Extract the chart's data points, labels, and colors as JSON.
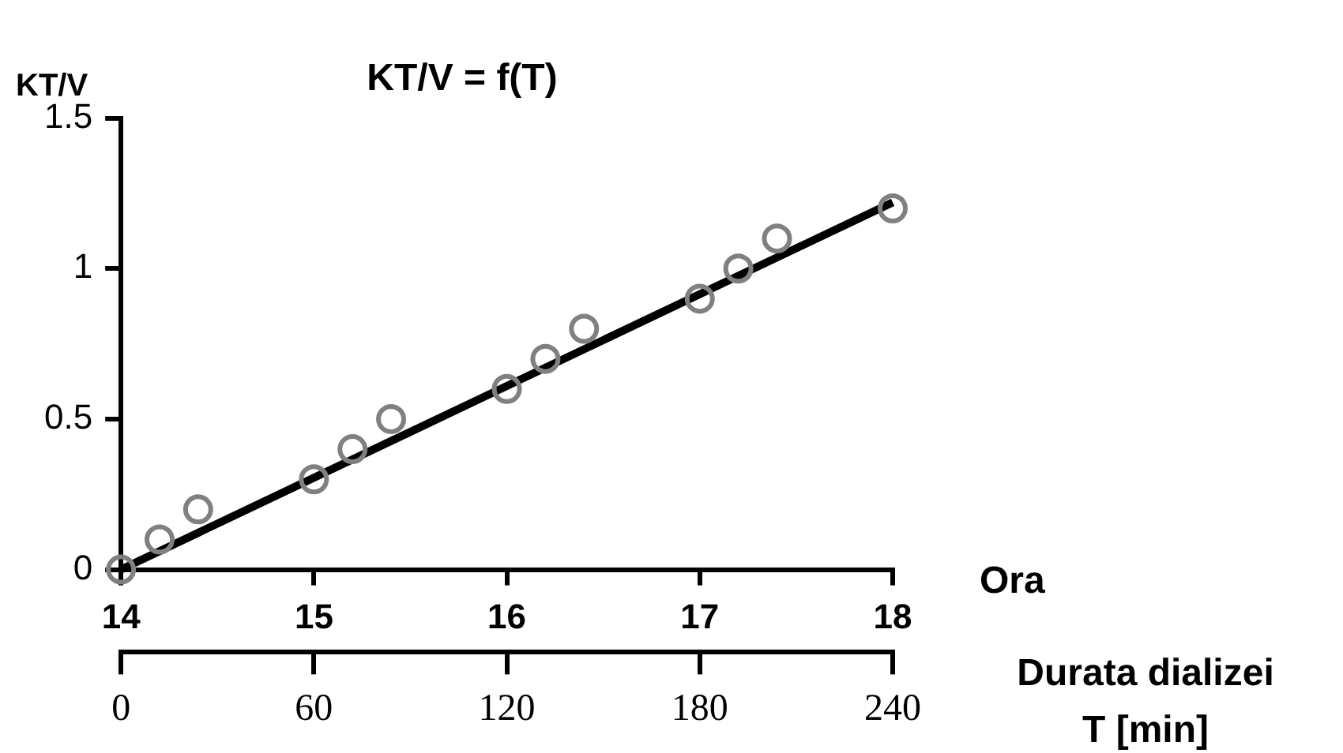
{
  "chart_data": {
    "type": "scatter",
    "title": "KT/V = f(T)",
    "ylabel": "KT/V",
    "xlabel": "Ora",
    "x2label": "Durata dializei T [min]",
    "xlim": [
      14,
      18
    ],
    "xticks": [
      14,
      15,
      16,
      17,
      18
    ],
    "x2lim": [
      0,
      240
    ],
    "x2ticks": [
      0,
      60,
      120,
      180,
      240
    ],
    "ylim": [
      0,
      1.5
    ],
    "yticks": [
      0,
      0.5,
      1,
      1.5
    ],
    "grid": false,
    "legend": false,
    "marker": "circle",
    "series": [
      {
        "color": "#808080",
        "x": [
          14,
          14.2,
          14.4,
          15,
          15.2,
          15.4,
          16,
          16.2,
          16.4,
          17,
          17.2,
          17.4,
          18
        ],
        "values": [
          0,
          0.1,
          0.2,
          0.3,
          0.4,
          0.5,
          0.6,
          0.7,
          0.8,
          0.9,
          1.0,
          1.1,
          1.2
        ]
      },
      {
        "type": "line",
        "marker": "none",
        "color": "#000000",
        "x": [
          14,
          18
        ],
        "values": [
          0,
          1.22
        ]
      }
    ]
  }
}
